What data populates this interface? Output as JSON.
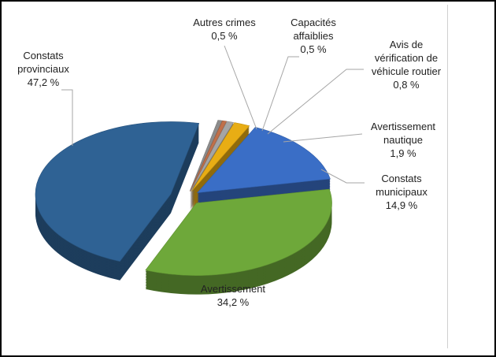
{
  "chart_data": {
    "type": "pie",
    "categories": [
      "Autres crimes",
      "Capacités affaiblies",
      "Avis de vérification de véhicule routier",
      "Avertissement nautique",
      "Constats municipaux",
      "Avertissement",
      "Constats provinciaux"
    ],
    "values": [
      0.5,
      0.5,
      0.8,
      1.9,
      14.9,
      34.2,
      47.2
    ],
    "value_labels": [
      "0,5 %",
      "0,5 %",
      "0,8 %",
      "1,9 %",
      "14,9 %",
      "34,2 %",
      "47,2 %"
    ],
    "colors": [
      "#8c8c8c",
      "#c0704a",
      "#a5a5a5",
      "#e8ad14",
      "#3a6ec6",
      "#6ea83a",
      "#2f6294"
    ]
  }
}
